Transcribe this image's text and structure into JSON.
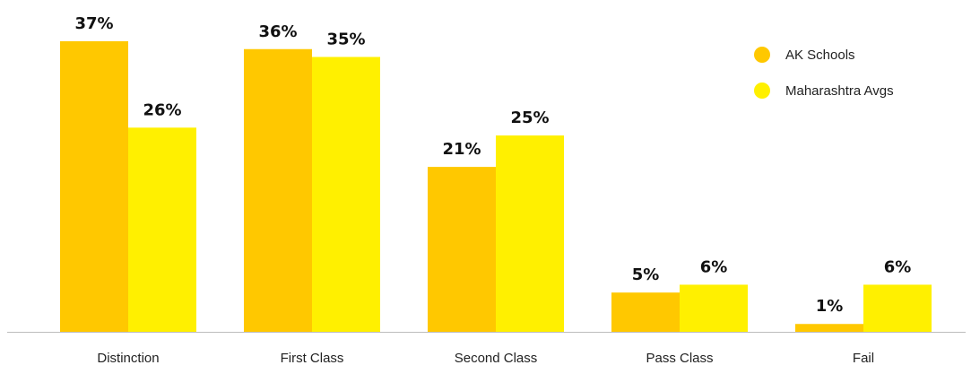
{
  "chart_data": {
    "type": "bar",
    "title": "",
    "xlabel": "",
    "ylabel": "",
    "ylim": [
      0,
      37
    ],
    "grid": false,
    "legend_position": "top-right",
    "categories": [
      "Distinction",
      "First Class",
      "Second Class",
      "Pass Class",
      "Fail"
    ],
    "series": [
      {
        "name": "AK Schools",
        "color": "#FFC800",
        "values": [
          37,
          36,
          21,
          5,
          1
        ],
        "labels": [
          "37%",
          "36%",
          "21%",
          "5%",
          "1%"
        ]
      },
      {
        "name": "Maharashtra Avgs",
        "color": "#FFF000",
        "values": [
          26,
          35,
          25,
          6,
          6
        ],
        "labels": [
          "26%",
          "35%",
          "25%",
          "6%",
          "6%"
        ]
      }
    ],
    "axis_color": "#BDBDBD"
  }
}
